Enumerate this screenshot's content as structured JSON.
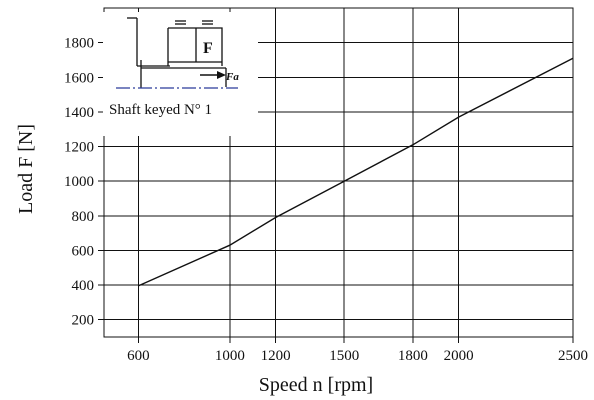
{
  "chart_data": {
    "type": "line",
    "title": "",
    "xlabel": "Speed  n  [rpm]",
    "ylabel": "Load  F  [N]",
    "x_ticks": [
      600,
      1000,
      1200,
      1500,
      1800,
      2000,
      2500
    ],
    "y_ticks": [
      200,
      400,
      600,
      800,
      1000,
      1200,
      1400,
      1600,
      1800
    ],
    "xlim": [
      450,
      2500
    ],
    "ylim": [
      100,
      2000
    ],
    "grid": true,
    "series": [
      {
        "name": "",
        "x": [
          600,
          1000,
          1200,
          1500,
          1800,
          2000,
          2500
        ],
        "y": [
          395,
          630,
          790,
          1000,
          1210,
          1370,
          1710
        ]
      }
    ]
  },
  "inset": {
    "caption": "Shaft  keyed  N° 1",
    "force_label": "F",
    "axial_label": "Fa"
  }
}
